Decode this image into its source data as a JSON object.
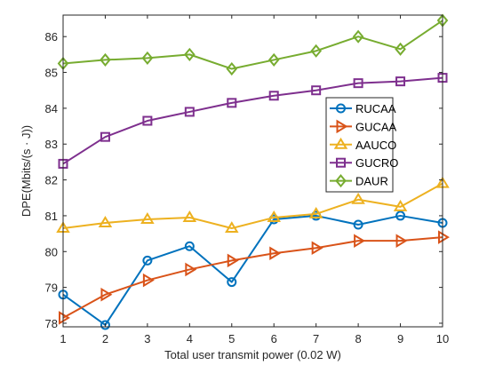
{
  "chart_data": {
    "type": "line",
    "title": "",
    "xlabel": "Total user transmit power (0.02 W)",
    "ylabel": "DPE(Mbits/(s · J))",
    "xlim": [
      1,
      10
    ],
    "ylim": [
      77.9,
      86.6
    ],
    "x": [
      1,
      2,
      3,
      4,
      5,
      6,
      7,
      8,
      9,
      10
    ],
    "x_ticks": [
      "1",
      "2",
      "3",
      "4",
      "5",
      "6",
      "7",
      "8",
      "9",
      "10"
    ],
    "y_ticks": [
      "78",
      "79",
      "80",
      "81",
      "82",
      "83",
      "84",
      "85",
      "86"
    ],
    "grid": false,
    "legend_position": "right",
    "series": [
      {
        "name": "RUCAA",
        "color": "#0072bd",
        "marker": "circle",
        "values": [
          78.8,
          77.95,
          79.75,
          80.15,
          79.15,
          80.9,
          81.0,
          80.75,
          81.0,
          80.8
        ]
      },
      {
        "name": "GUCAA",
        "color": "#d95319",
        "marker": "triangle-right",
        "values": [
          78.15,
          78.8,
          79.2,
          79.5,
          79.75,
          79.95,
          80.1,
          80.3,
          80.3,
          80.4
        ]
      },
      {
        "name": "AAUCO",
        "color": "#edb120",
        "marker": "triangle-up",
        "values": [
          80.65,
          80.8,
          80.9,
          80.95,
          80.65,
          80.95,
          81.05,
          81.45,
          81.25,
          81.9
        ]
      },
      {
        "name": "GUCRO",
        "color": "#7e2f8e",
        "marker": "square",
        "values": [
          82.45,
          83.2,
          83.65,
          83.9,
          84.15,
          84.35,
          84.5,
          84.7,
          84.75,
          84.85
        ]
      },
      {
        "name": "DAUR",
        "color": "#77ac30",
        "marker": "diamond",
        "values": [
          85.25,
          85.35,
          85.4,
          85.5,
          85.1,
          85.35,
          85.6,
          86.0,
          85.65,
          86.45
        ]
      }
    ]
  }
}
